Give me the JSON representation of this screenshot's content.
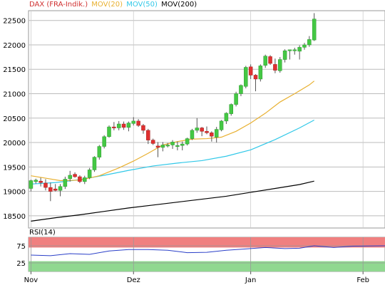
{
  "chart_data": {
    "type": "candlestick",
    "instrument": "DAX (FRA-Indik.)",
    "legend": [
      {
        "name": "DAX (FRA-Indik.)",
        "color": "#d03030"
      },
      {
        "name": "MOV(20)",
        "color": "#e8b030"
      },
      {
        "name": "MOV(50)",
        "color": "#30c8e8"
      },
      {
        "name": "MOV(200)",
        "color": "#000000"
      }
    ],
    "main_panel": {
      "y_ticks": [
        18500,
        19000,
        19500,
        20000,
        20500,
        21000,
        21500,
        22000,
        22500
      ],
      "y_tick_labels": [
        "18500",
        "19000",
        "19500",
        "20000",
        "20500",
        "21000",
        "21500",
        "22000",
        "22500"
      ],
      "ylim": [
        18250,
        22700
      ],
      "grid": true
    },
    "x_labels": [
      {
        "label": "Nov",
        "index": 0
      },
      {
        "label": "Dez",
        "index": 21
      },
      {
        "label": "Jan",
        "index": 45
      },
      {
        "label": "Feb",
        "index": 68
      }
    ],
    "candles": [
      [
        19060,
        19240,
        19000,
        19220
      ],
      [
        19200,
        19260,
        19160,
        19230
      ],
      [
        19210,
        19280,
        19100,
        19180
      ],
      [
        19170,
        19250,
        19020,
        19080
      ],
      [
        19080,
        19180,
        18800,
        19000
      ],
      [
        19050,
        19150,
        19000,
        19020
      ],
      [
        19020,
        19150,
        18900,
        19100
      ],
      [
        19100,
        19300,
        19050,
        19250
      ],
      [
        19260,
        19420,
        19200,
        19330
      ],
      [
        19350,
        19390,
        19280,
        19300
      ],
      [
        19300,
        19330,
        19170,
        19200
      ],
      [
        19200,
        19320,
        19150,
        19280
      ],
      [
        19280,
        19480,
        19250,
        19440
      ],
      [
        19440,
        19720,
        19400,
        19700
      ],
      [
        19700,
        19950,
        19650,
        19920
      ],
      [
        19920,
        20150,
        19880,
        20120
      ],
      [
        20120,
        20350,
        20100,
        20320
      ],
      [
        20320,
        20420,
        20250,
        20300
      ],
      [
        20300,
        20440,
        20250,
        20380
      ],
      [
        20380,
        20430,
        20260,
        20310
      ],
      [
        20310,
        20430,
        20230,
        20400
      ],
      [
        20390,
        20520,
        20350,
        20440
      ],
      [
        20440,
        20480,
        20320,
        20350
      ],
      [
        20350,
        20380,
        20180,
        20250
      ],
      [
        20250,
        20280,
        19970,
        20050
      ],
      [
        20050,
        20080,
        19950,
        19980
      ],
      [
        19930,
        20010,
        19700,
        19900
      ],
      [
        19900,
        20010,
        19820,
        19950
      ],
      [
        19950,
        19990,
        19900,
        19950
      ],
      [
        19950,
        20050,
        19870,
        20010
      ],
      [
        19930,
        20020,
        19840,
        19940
      ],
      [
        19940,
        20020,
        19840,
        19970
      ],
      [
        19970,
        20100,
        19940,
        20080
      ],
      [
        20080,
        20280,
        20050,
        20250
      ],
      [
        20250,
        20500,
        20200,
        20300
      ],
      [
        20300,
        20320,
        20130,
        20230
      ],
      [
        20230,
        20330,
        20170,
        20200
      ],
      [
        20200,
        20230,
        20020,
        20130
      ],
      [
        20110,
        20320,
        20000,
        20270
      ],
      [
        20260,
        20460,
        20230,
        20440
      ],
      [
        20440,
        20620,
        20380,
        20600
      ],
      [
        20590,
        20800,
        20550,
        20780
      ],
      [
        20780,
        21040,
        20740,
        21000
      ],
      [
        21000,
        21190,
        20950,
        21170
      ],
      [
        21150,
        21570,
        21110,
        21540
      ],
      [
        21550,
        21600,
        21300,
        21380
      ],
      [
        21380,
        21400,
        21050,
        21300
      ],
      [
        21300,
        21600,
        21250,
        21570
      ],
      [
        21580,
        21800,
        21530,
        21770
      ],
      [
        21760,
        21790,
        21590,
        21620
      ],
      [
        21600,
        21720,
        21420,
        21480
      ],
      [
        21470,
        21750,
        21430,
        21700
      ],
      [
        21700,
        21910,
        21640,
        21880
      ],
      [
        21880,
        21900,
        21700,
        21900
      ],
      [
        21900,
        21940,
        21800,
        21900
      ],
      [
        21870,
        21990,
        21700,
        21950
      ],
      [
        21950,
        22040,
        21900,
        22000
      ],
      [
        22000,
        22180,
        21960,
        22110
      ],
      [
        22100,
        22650,
        22080,
        22530
      ]
    ],
    "mov20": [
      [
        0,
        19320
      ],
      [
        3,
        19270
      ],
      [
        6,
        19220
      ],
      [
        10,
        19230
      ],
      [
        14,
        19320
      ],
      [
        18,
        19480
      ],
      [
        21,
        19620
      ],
      [
        24,
        19780
      ],
      [
        27,
        19950
      ],
      [
        30,
        20020
      ],
      [
        33,
        20070
      ],
      [
        36,
        20080
      ],
      [
        39,
        20110
      ],
      [
        42,
        20230
      ],
      [
        45,
        20400
      ],
      [
        48,
        20600
      ],
      [
        51,
        20830
      ],
      [
        54,
        21000
      ],
      [
        57,
        21180
      ],
      [
        58,
        21260
      ]
    ],
    "mov50": [
      [
        0,
        19150
      ],
      [
        5,
        19180
      ],
      [
        10,
        19240
      ],
      [
        15,
        19330
      ],
      [
        20,
        19430
      ],
      [
        25,
        19520
      ],
      [
        30,
        19580
      ],
      [
        35,
        19630
      ],
      [
        40,
        19720
      ],
      [
        45,
        19850
      ],
      [
        50,
        20060
      ],
      [
        55,
        20300
      ],
      [
        58,
        20460
      ]
    ],
    "mov200": [
      [
        0,
        18390
      ],
      [
        5,
        18460
      ],
      [
        10,
        18520
      ],
      [
        15,
        18590
      ],
      [
        20,
        18660
      ],
      [
        25,
        18720
      ],
      [
        30,
        18780
      ],
      [
        35,
        18840
      ],
      [
        40,
        18900
      ],
      [
        45,
        18980
      ],
      [
        50,
        19060
      ],
      [
        55,
        19140
      ],
      [
        58,
        19210
      ]
    ],
    "rsi": {
      "label": "RSI(14)",
      "y_ticks": [
        25,
        75
      ],
      "y_tick_labels": [
        "25",
        "75"
      ],
      "ylim": [
        0,
        100
      ],
      "overbought": 70,
      "oversold": 30,
      "values": [
        [
          0,
          48
        ],
        [
          4,
          46
        ],
        [
          8,
          52
        ],
        [
          12,
          50
        ],
        [
          16,
          60
        ],
        [
          20,
          64
        ],
        [
          24,
          64
        ],
        [
          28,
          62
        ],
        [
          32,
          55
        ],
        [
          36,
          56
        ],
        [
          40,
          62
        ],
        [
          44,
          66
        ],
        [
          48,
          70
        ],
        [
          52,
          67
        ],
        [
          55,
          68
        ],
        [
          58,
          75
        ],
        [
          62,
          70
        ],
        [
          66,
          74
        ],
        [
          72,
          75
        ],
        [
          76,
          74
        ],
        [
          80,
          78
        ]
      ]
    }
  }
}
